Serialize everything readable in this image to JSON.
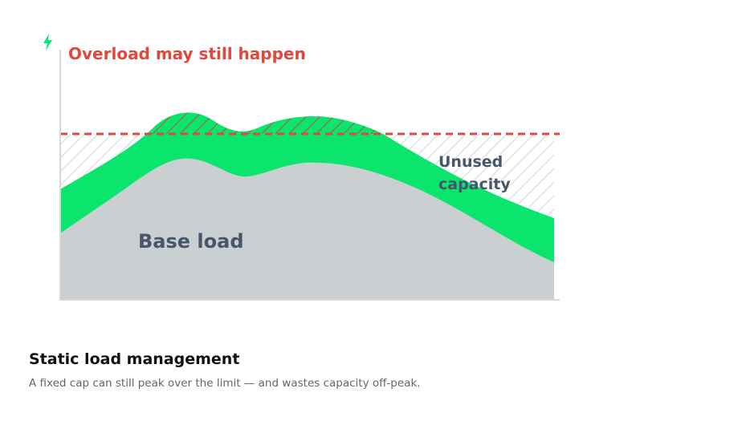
{
  "labels": {
    "overload": "Overload may still happen",
    "unused_capacity": "Unused capacity",
    "base_load": "Base load"
  },
  "caption": {
    "title": "Static load management",
    "description": "A fixed cap can still peak over the limit — and wastes capacity off-peak."
  }
}
